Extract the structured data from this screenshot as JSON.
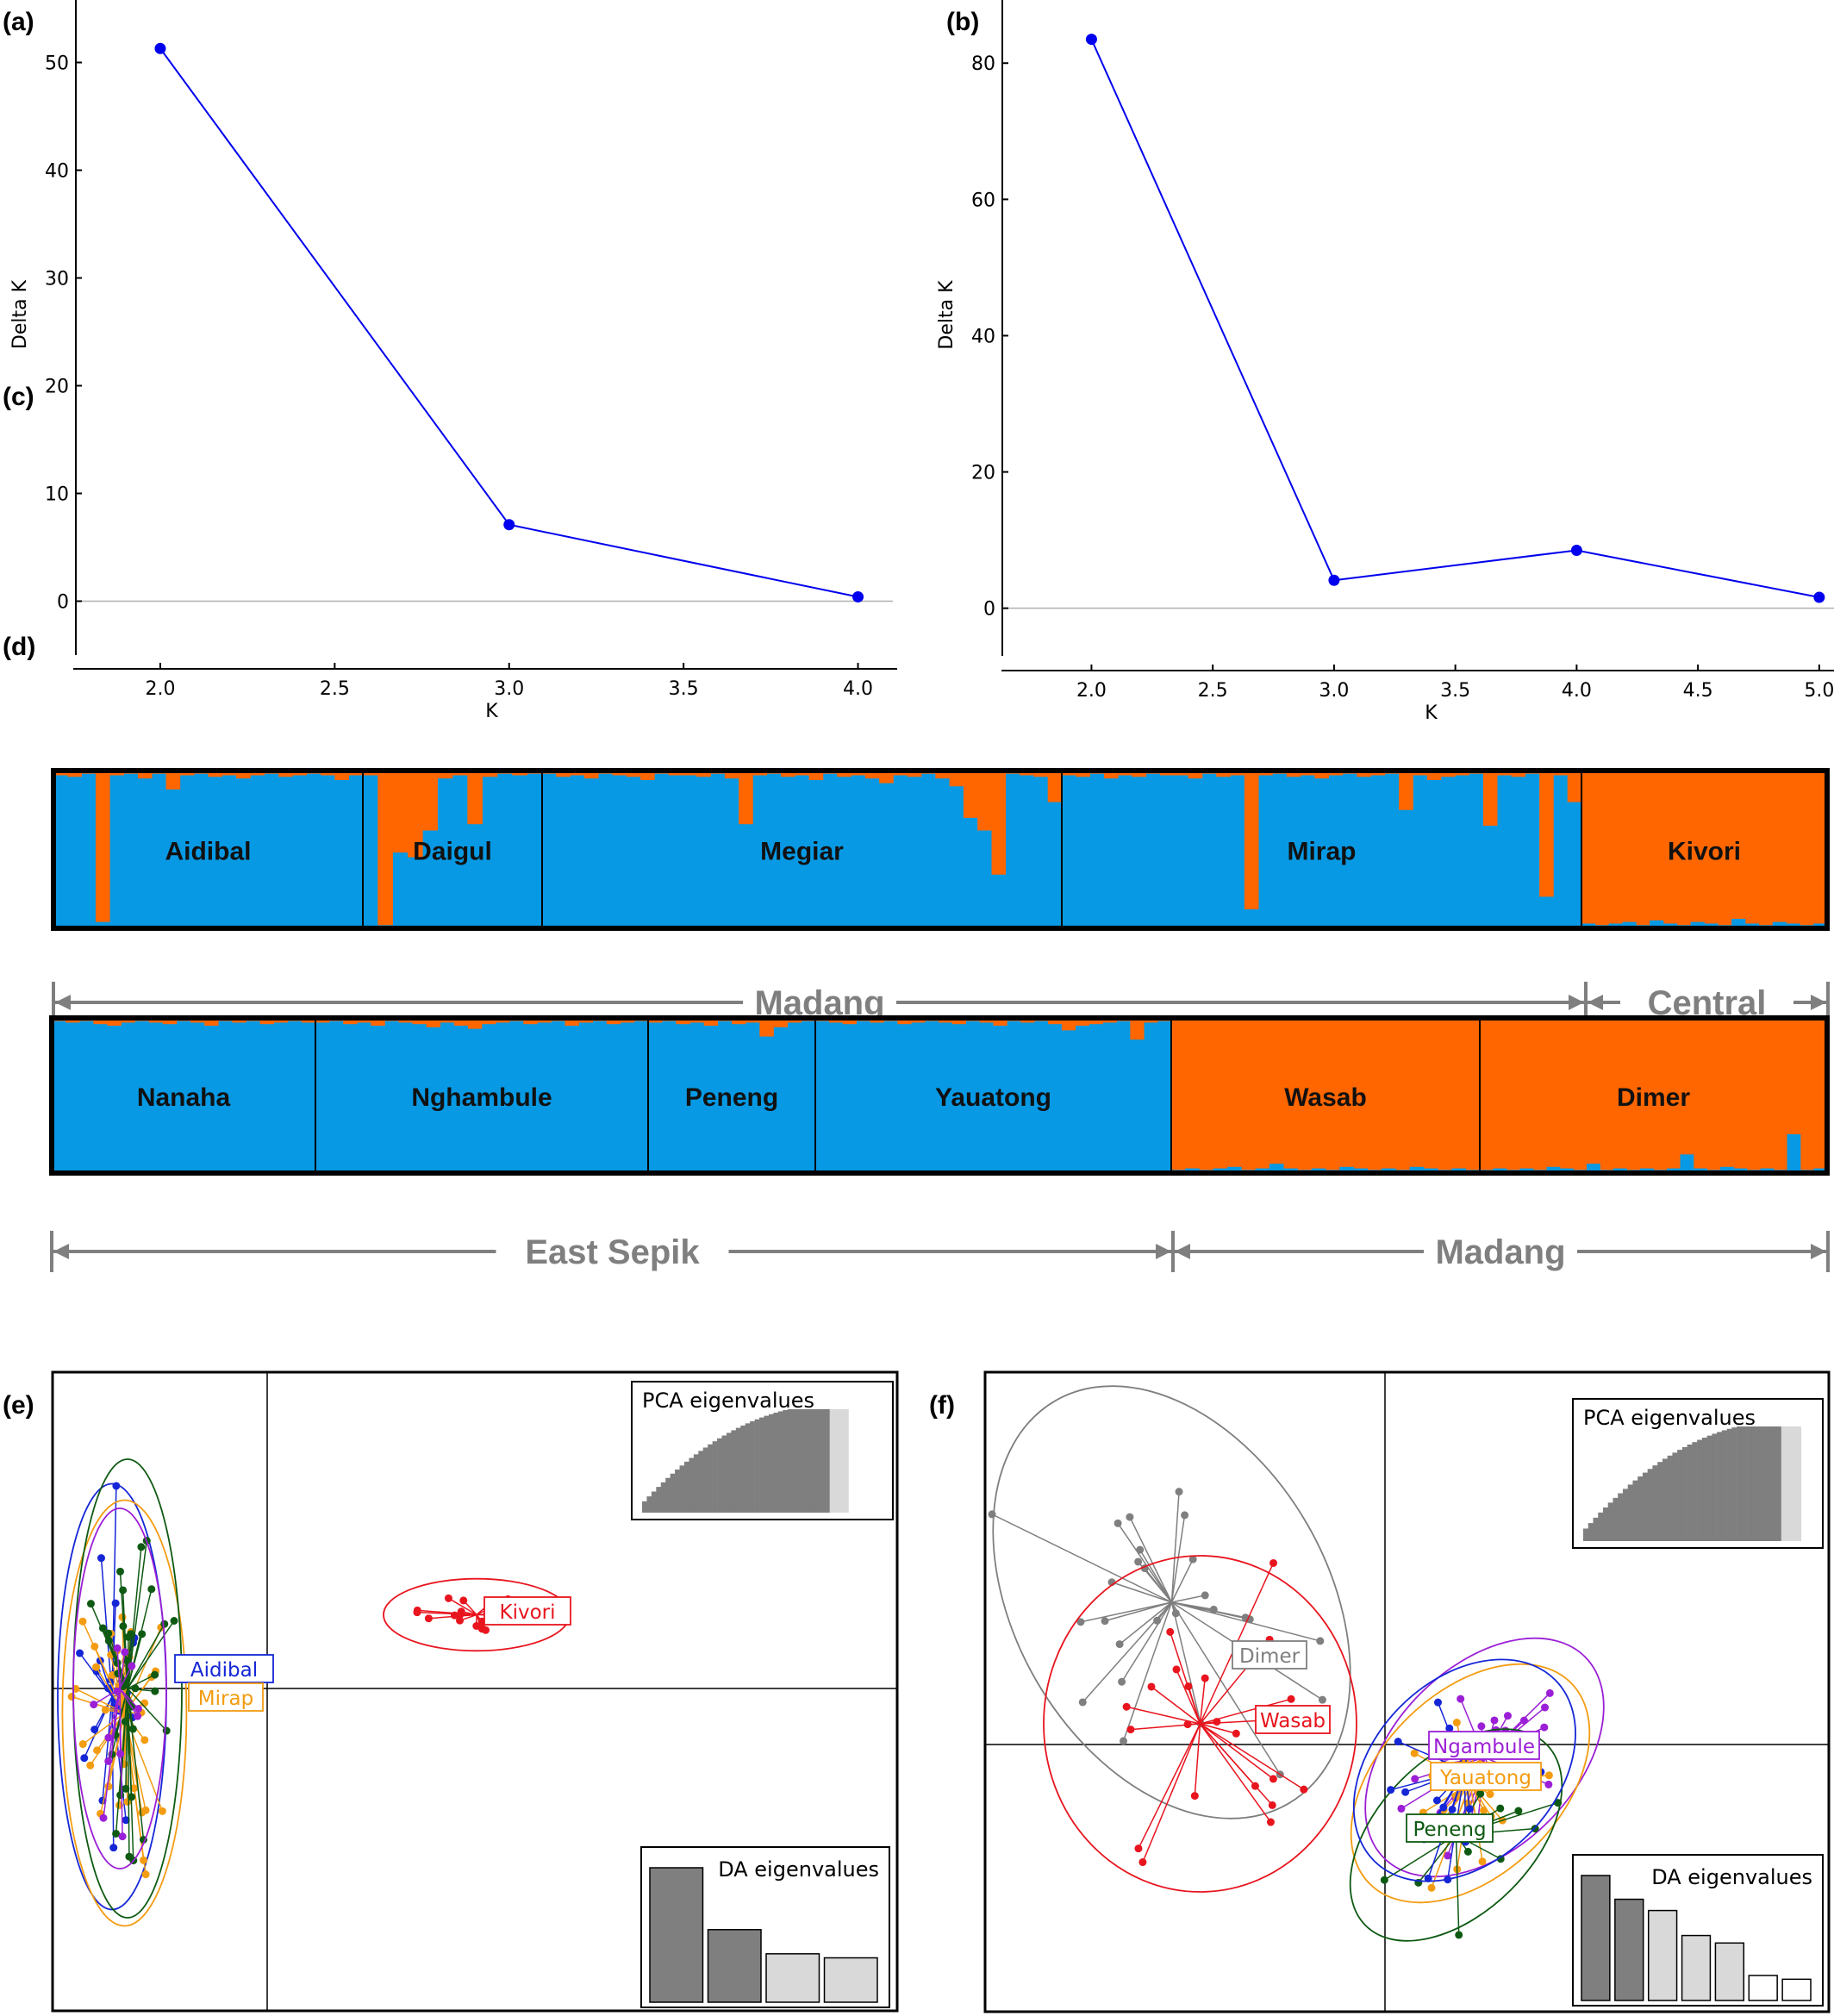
{
  "panel_labels": {
    "a": "(a)",
    "b": "(b)",
    "c": "(c)",
    "d": "(d)",
    "e": "(e)",
    "f": "(f)"
  },
  "colors": {
    "line": "#0000ee",
    "blue": "#0899e4",
    "orange": "#ff6600",
    "gray": "#7f7f7f",
    "red": "#e8141e",
    "purple": "#9b1fd6",
    "yellow": "#f39c12",
    "green": "#0e5a12",
    "dblue": "#1426d6"
  },
  "chart_data": [
    {
      "id": "a",
      "type": "line",
      "x": [
        2.0,
        3.0,
        4.0
      ],
      "y": [
        51.3,
        7.1,
        0.4
      ],
      "xlabel": "K",
      "ylabel": "Delta K",
      "xlim": [
        1.8,
        4.1
      ],
      "ylim": [
        -5,
        55
      ],
      "xticks": [
        "2.0",
        "2.5",
        "3.0",
        "3.5",
        "4.0"
      ],
      "yticks": [
        "0",
        "10",
        "20",
        "30",
        "40",
        "50"
      ]
    },
    {
      "id": "b",
      "type": "line",
      "x": [
        2.0,
        3.0,
        4.0,
        5.0
      ],
      "y": [
        83.5,
        4.1,
        8.5,
        1.6
      ],
      "xlabel": "K",
      "ylabel": "Delta K",
      "xlim": [
        1.7,
        5.1
      ],
      "ylim": [
        -7,
        88
      ],
      "xticks": [
        "2.0",
        "2.5",
        "3.0",
        "3.5",
        "4.0",
        "4.5",
        "5.0"
      ],
      "yticks": [
        "0",
        "20",
        "40",
        "60",
        "80"
      ]
    },
    {
      "id": "c",
      "type": "bar",
      "stacked": true,
      "description_series": [
        "cluster 1 (blue)",
        "cluster 2 (orange)"
      ],
      "populations": [
        {
          "name": "Aidibal",
          "n": 22,
          "orange": [
            0.03,
            0.04,
            0.02,
            0.96,
            0.03,
            0.02,
            0.05,
            0.02,
            0.12,
            0.03,
            0.02,
            0.04,
            0.03,
            0.05,
            0.03,
            0.02,
            0.04,
            0.03,
            0.02,
            0.03,
            0.06,
            0.03
          ]
        },
        {
          "name": "Daigul",
          "n": 12,
          "orange": [
            0.03,
            0.98,
            0.52,
            0.55,
            0.38,
            0.05,
            0.03,
            0.34,
            0.04,
            0.02,
            0.03,
            0.02
          ]
        },
        {
          "name": "Megiar",
          "n": 37,
          "orange": [
            0.02,
            0.04,
            0.03,
            0.05,
            0.02,
            0.03,
            0.04,
            0.06,
            0.02,
            0.03,
            0.03,
            0.04,
            0.02,
            0.05,
            0.34,
            0.03,
            0.02,
            0.04,
            0.03,
            0.06,
            0.02,
            0.04,
            0.03,
            0.05,
            0.08,
            0.03,
            0.04,
            0.02,
            0.05,
            0.1,
            0.3,
            0.38,
            0.66,
            0.02,
            0.03,
            0.04,
            0.2
          ]
        },
        {
          "name": "Mirap",
          "n": 37,
          "orange": [
            0.03,
            0.04,
            0.02,
            0.05,
            0.03,
            0.04,
            0.02,
            0.03,
            0.03,
            0.05,
            0.02,
            0.04,
            0.03,
            0.88,
            0.03,
            0.02,
            0.04,
            0.03,
            0.05,
            0.03,
            0.02,
            0.04,
            0.03,
            0.02,
            0.25,
            0.03,
            0.06,
            0.04,
            0.03,
            0.02,
            0.35,
            0.03,
            0.04,
            0.02,
            0.8,
            0.03,
            0.2
          ]
        },
        {
          "name": "Kivori",
          "n": 18,
          "blue": [
            0.03,
            0.02,
            0.03,
            0.04,
            0.02,
            0.05,
            0.03,
            0.02,
            0.04,
            0.03,
            0.02,
            0.06,
            0.03,
            0.02,
            0.04,
            0.03,
            0.02,
            0.03
          ]
        }
      ],
      "regions": [
        {
          "name": "Madang",
          "span": [
            "Aidibal",
            "Mirap"
          ]
        },
        {
          "name": "Central",
          "span": [
            "Kivori",
            "Kivori"
          ]
        }
      ]
    },
    {
      "id": "d",
      "type": "bar",
      "stacked": true,
      "description_series": [
        "cluster 1 (blue)",
        "cluster 2 (orange)"
      ],
      "populations": [
        {
          "name": "Nanaha",
          "n": 19,
          "orange": [
            0.02,
            0.03,
            0.02,
            0.04,
            0.05,
            0.03,
            0.02,
            0.03,
            0.04,
            0.02,
            0.03,
            0.05,
            0.02,
            0.03,
            0.02,
            0.04,
            0.03,
            0.02,
            0.03
          ]
        },
        {
          "name": "Nghambule",
          "n": 24,
          "orange": [
            0.03,
            0.02,
            0.04,
            0.03,
            0.05,
            0.02,
            0.03,
            0.04,
            0.06,
            0.03,
            0.05,
            0.07,
            0.04,
            0.03,
            0.02,
            0.04,
            0.03,
            0.02,
            0.05,
            0.03,
            0.02,
            0.04,
            0.03,
            0.02
          ]
        },
        {
          "name": "Peneng",
          "n": 12,
          "orange": [
            0.03,
            0.02,
            0.04,
            0.03,
            0.05,
            0.02,
            0.04,
            0.03,
            0.12,
            0.06,
            0.03,
            0.02
          ]
        },
        {
          "name": "Yauatong",
          "n": 26,
          "orange": [
            0.02,
            0.03,
            0.04,
            0.02,
            0.03,
            0.02,
            0.04,
            0.03,
            0.02,
            0.03,
            0.04,
            0.02,
            0.03,
            0.05,
            0.02,
            0.03,
            0.02,
            0.04,
            0.08,
            0.05,
            0.04,
            0.03,
            0.02,
            0.14,
            0.03,
            0.02
          ]
        },
        {
          "name": "Wasab",
          "n": 22,
          "blue": [
            0.02,
            0.03,
            0.02,
            0.03,
            0.04,
            0.02,
            0.03,
            0.06,
            0.03,
            0.02,
            0.03,
            0.02,
            0.04,
            0.03,
            0.02,
            0.03,
            0.02,
            0.04,
            0.03,
            0.02,
            0.03,
            0.02
          ]
        },
        {
          "name": "Dimer",
          "n": 26,
          "blue": [
            0.02,
            0.03,
            0.02,
            0.03,
            0.02,
            0.04,
            0.03,
            0.02,
            0.06,
            0.02,
            0.03,
            0.02,
            0.03,
            0.02,
            0.03,
            0.12,
            0.03,
            0.02,
            0.04,
            0.03,
            0.02,
            0.03,
            0.02,
            0.25,
            0.02,
            0.03
          ]
        }
      ],
      "regions": [
        {
          "name": "East Sepik",
          "span": [
            "Nanaha",
            "Yauatong"
          ]
        },
        {
          "name": "Madang",
          "span": [
            "Wasab",
            "Dimer"
          ]
        }
      ]
    },
    {
      "id": "e",
      "type": "scatter",
      "subtype": "DAPC",
      "groups": [
        {
          "label": "Aidibal",
          "color": "#1426d6",
          "center": [
            -1.0,
            -0.05
          ],
          "spread": [
            0.35,
            1.3
          ],
          "n": 22
        },
        {
          "label": "Mirap",
          "color": "#f39c12",
          "center": [
            -0.92,
            -0.15
          ],
          "spread": [
            0.4,
            1.3
          ],
          "n": 37
        },
        {
          "label": "Megiar",
          "color": "#0e5a12",
          "center": [
            -0.9,
            0.0
          ],
          "spread": [
            0.35,
            1.4
          ],
          "n": 37
        },
        {
          "label": "Daigul",
          "color": "#9b1fd6",
          "center": [
            -0.95,
            0.0
          ],
          "spread": [
            0.3,
            1.1
          ],
          "n": 12
        },
        {
          "label": "Kivori",
          "color": "#e8141e",
          "center": [
            1.35,
            0.45
          ],
          "spread": [
            0.6,
            0.22
          ],
          "n": 18
        }
      ],
      "visible_group_labels": [
        "Aidibal",
        "Mirap",
        "Kivori"
      ],
      "insets": {
        "pca": {
          "title": "PCA eigenvalues",
          "retained": 40,
          "total": 52
        },
        "da": {
          "title": "DA eigenvalues",
          "values": [
            1.0,
            0.54,
            0.36,
            0.33
          ],
          "retained": 2
        }
      }
    },
    {
      "id": "f",
      "type": "scatter",
      "subtype": "DAPC",
      "groups": [
        {
          "label": "Dimer",
          "color": "#7f7f7f",
          "center": [
            -0.75,
            0.55
          ],
          "spread": [
            0.55,
            0.9
          ],
          "n": 26
        },
        {
          "label": "Wasab",
          "color": "#e8141e",
          "center": [
            -0.65,
            0.08
          ],
          "spread": [
            0.55,
            0.65
          ],
          "n": 22
        },
        {
          "label": "Ngambule",
          "color": "#9b1fd6",
          "center": [
            0.35,
            -0.05
          ],
          "spread": [
            0.5,
            0.35
          ],
          "n": 24
        },
        {
          "label": "Yauatong",
          "color": "#f39c12",
          "center": [
            0.3,
            -0.15
          ],
          "spread": [
            0.5,
            0.35
          ],
          "n": 26
        },
        {
          "label": "Peneng",
          "color": "#0e5a12",
          "center": [
            0.25,
            -0.35
          ],
          "spread": [
            0.45,
            0.3
          ],
          "n": 12
        },
        {
          "label": "Nanaha",
          "color": "#1426d6",
          "center": [
            0.28,
            -0.1
          ],
          "spread": [
            0.45,
            0.35
          ],
          "n": 19
        }
      ],
      "visible_group_labels": [
        "Dimer",
        "Wasab",
        "Ngambule",
        "Yauatong",
        "Peneng"
      ],
      "insets": {
        "pca": {
          "title": "PCA eigenvalues",
          "retained": 40,
          "total": 47
        },
        "da": {
          "title": "DA eigenvalues",
          "values": [
            1.0,
            0.81,
            0.72,
            0.52,
            0.46,
            0.2,
            0.17
          ],
          "retained": 2
        }
      }
    }
  ]
}
